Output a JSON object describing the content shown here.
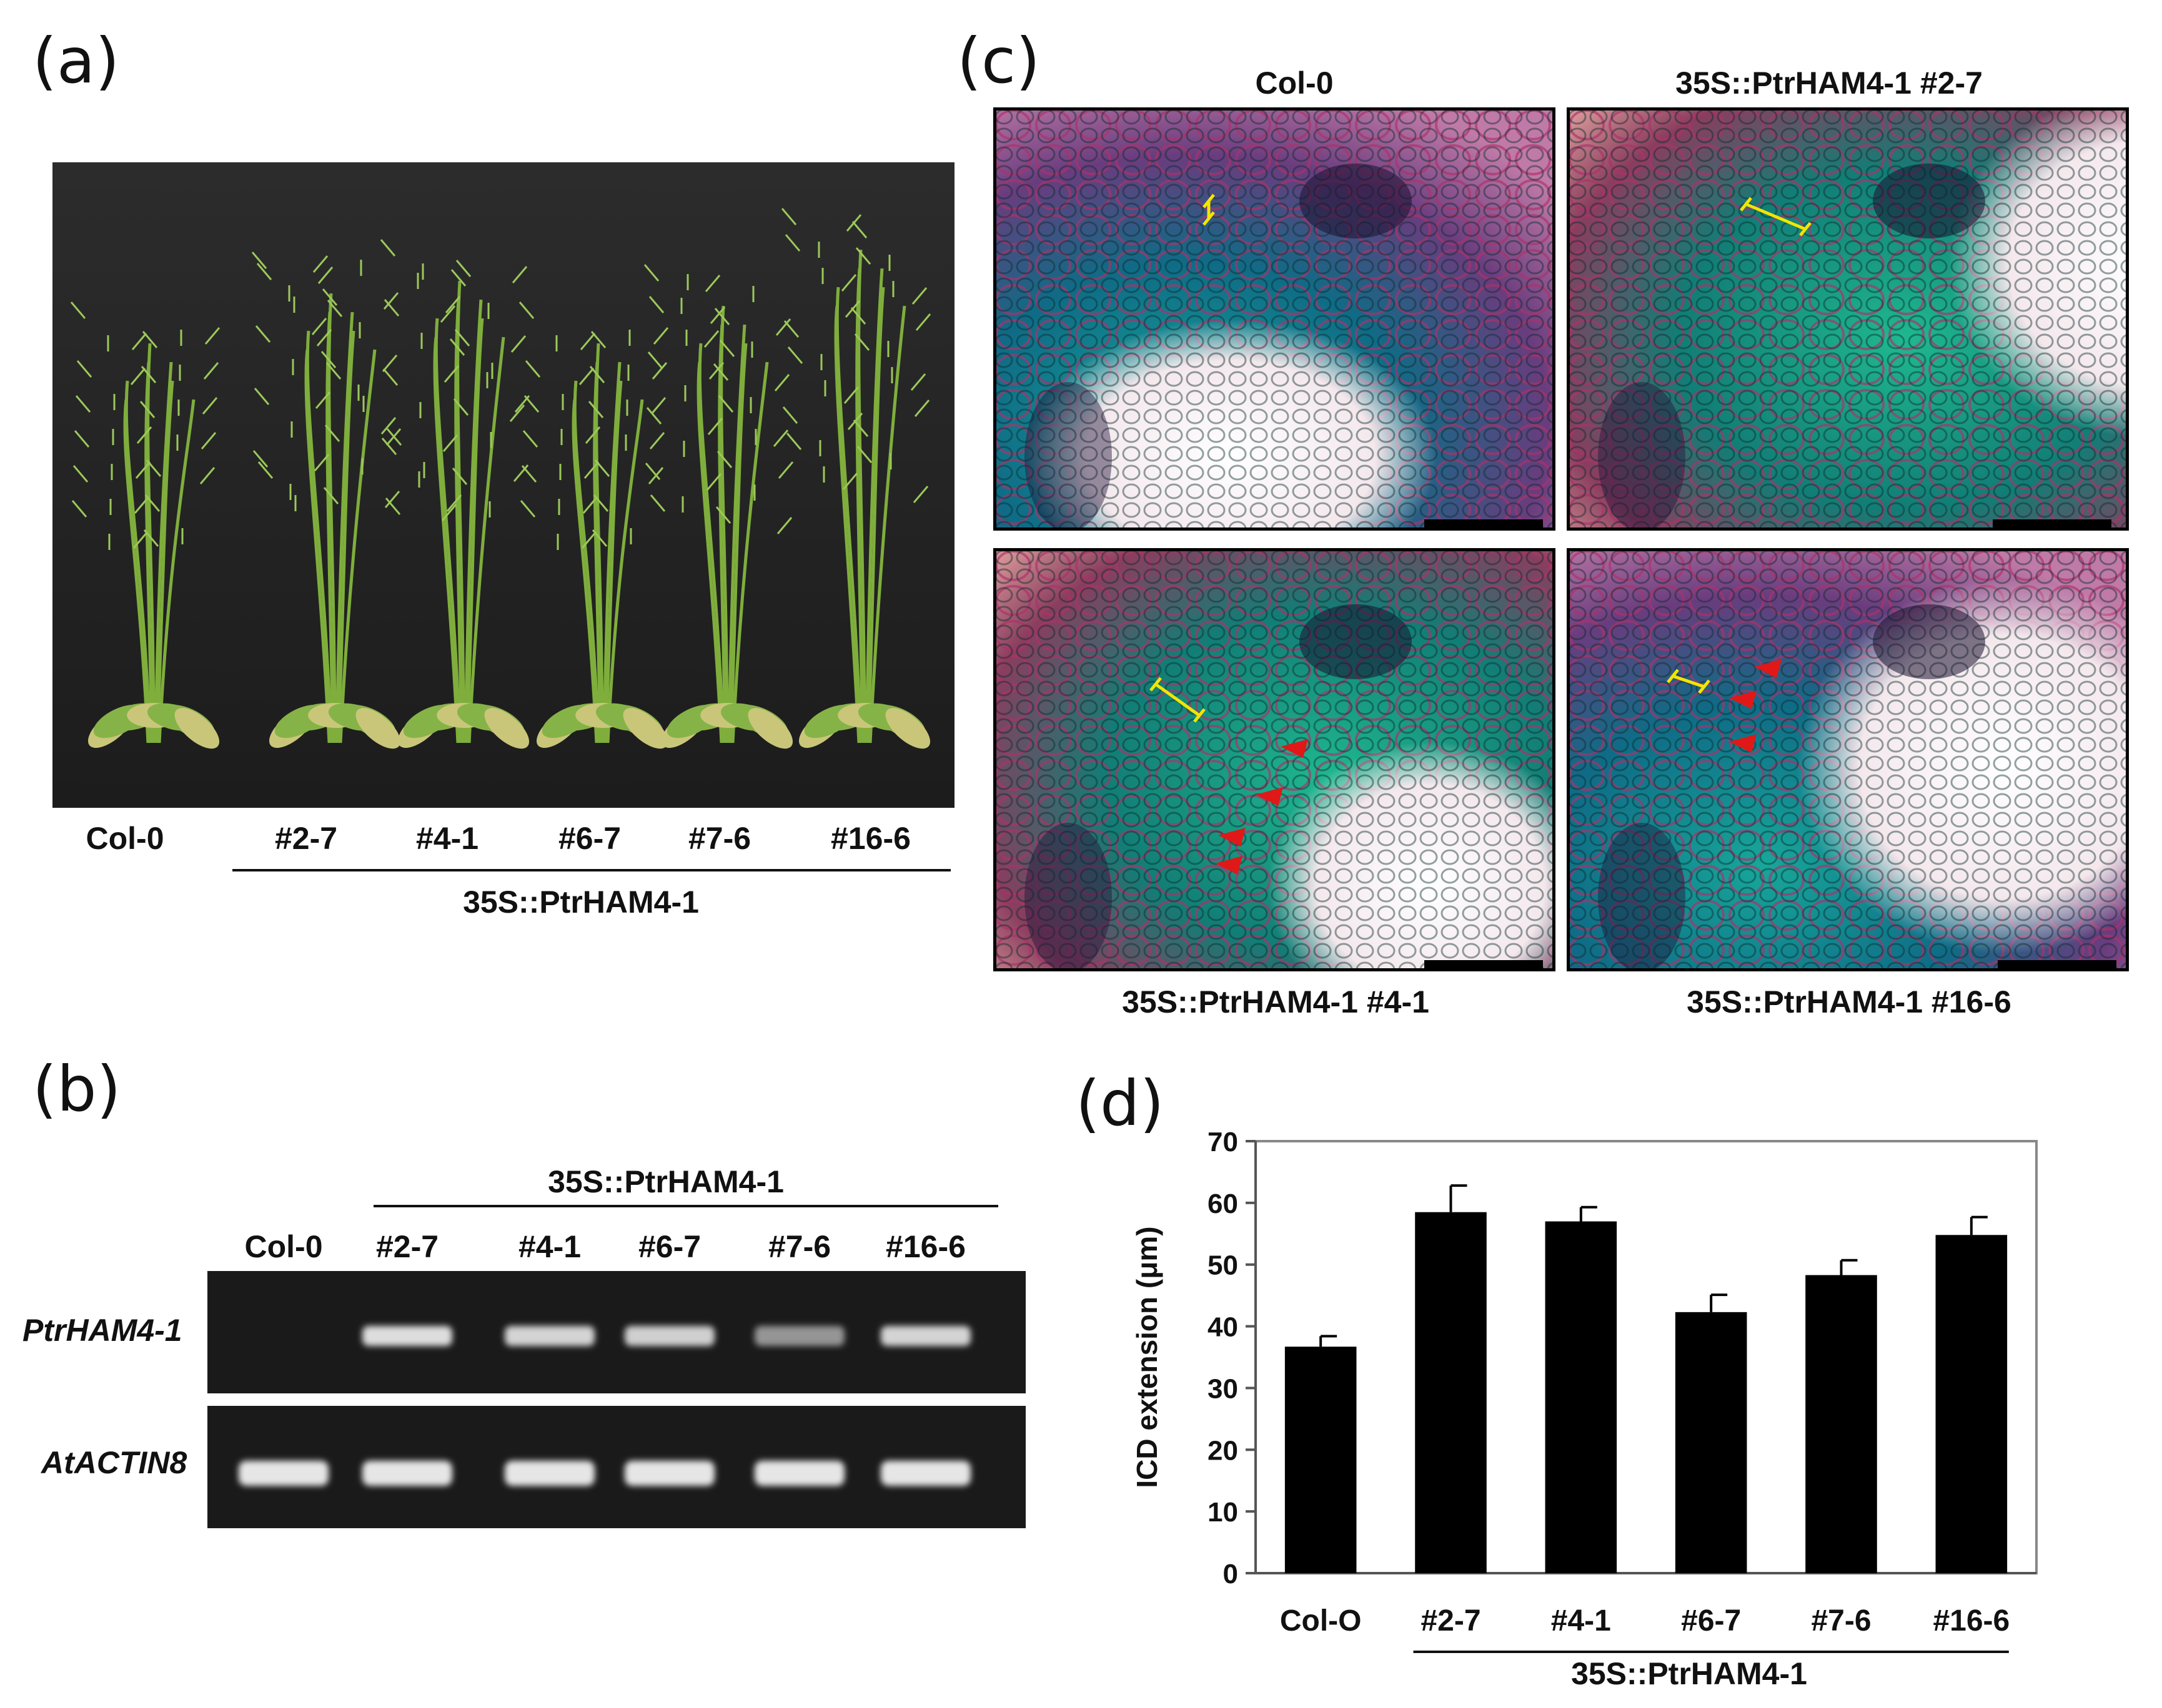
{
  "panel_a": {
    "letter": "(a)",
    "photo_icon": "plant-photo-icon",
    "genotypes": [
      "Col-0",
      "#2-7",
      "#4-1",
      "#6-7",
      "#7-6",
      "#16-6"
    ],
    "group_label": "35S::PtrHAM4-1"
  },
  "panel_b": {
    "letter": "(b)",
    "group_label": "35S::PtrHAM4-1",
    "lanes": [
      "Col-0",
      "#2-7",
      "#4-1",
      "#6-7",
      "#7-6",
      "#16-6"
    ],
    "gene_1": "PtrHAM4-1",
    "gene_2": "AtACTIN8",
    "gel_icon": "gel-band-icon"
  },
  "panel_c": {
    "letter": "(c)",
    "titles": {
      "top_left": "Col-0",
      "top_right": "35S::PtrHAM4-1 #2-7",
      "bottom_left": "35S::PtrHAM4-1 #4-1",
      "bottom_right": "35S::PtrHAM4-1 #16-6"
    },
    "micrograph_icon": "stem-cross-section-icon",
    "arrow_color": "#e01818",
    "bracket_color": "#f2e600"
  },
  "panel_d": {
    "letter": "(d)",
    "group_label": "35S::PtrHAM4-1"
  },
  "chart_data": {
    "type": "bar",
    "categories": [
      "Col-O",
      "#2-7",
      "#4-1",
      "#6-7",
      "#7-6",
      "#16-6"
    ],
    "values": [
      36.7,
      58.5,
      57.0,
      42.3,
      48.3,
      54.8
    ],
    "errors": [
      1.7,
      4.3,
      2.3,
      2.8,
      2.4,
      2.9
    ],
    "title": "",
    "xlabel": "",
    "ylabel": "ICD extension (μm)",
    "ylim": [
      0,
      70
    ],
    "yticks": [
      0,
      10,
      20,
      30,
      40,
      50,
      60,
      70
    ],
    "bar_color": "#000000",
    "grid": false,
    "legend": "none"
  }
}
